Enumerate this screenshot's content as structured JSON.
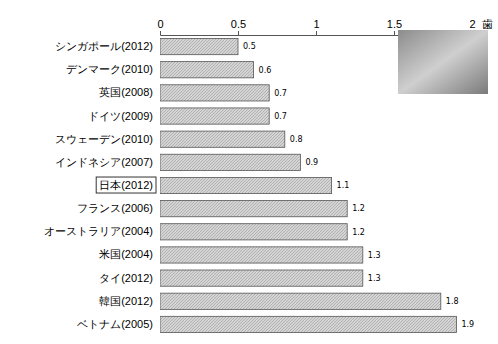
{
  "chart_data": {
    "type": "bar",
    "orientation": "horizontal",
    "xlabel": "歯",
    "categories": [
      "シンガポール(2012)",
      "デンマーク(2010)",
      "英国(2008)",
      "ドイツ(2009)",
      "スウェーデン(2010)",
      "インドネシア(2007)",
      "日本(2012)",
      "フランス(2006)",
      "オーストラリア(2004)",
      "米国(2004)",
      "タイ(2012)",
      "韓国(2012)",
      "ベトナム(2005)"
    ],
    "values": [
      0.5,
      0.6,
      0.7,
      0.7,
      0.8,
      0.9,
      1.1,
      1.2,
      1.2,
      1.3,
      1.3,
      1.8,
      1.9
    ],
    "color": "#d4d4d4",
    "xlim": [
      0,
      2
    ],
    "xticks": [
      0,
      0.5,
      1,
      1.5,
      2
    ],
    "grid": false,
    "data_labels": true
  }
}
